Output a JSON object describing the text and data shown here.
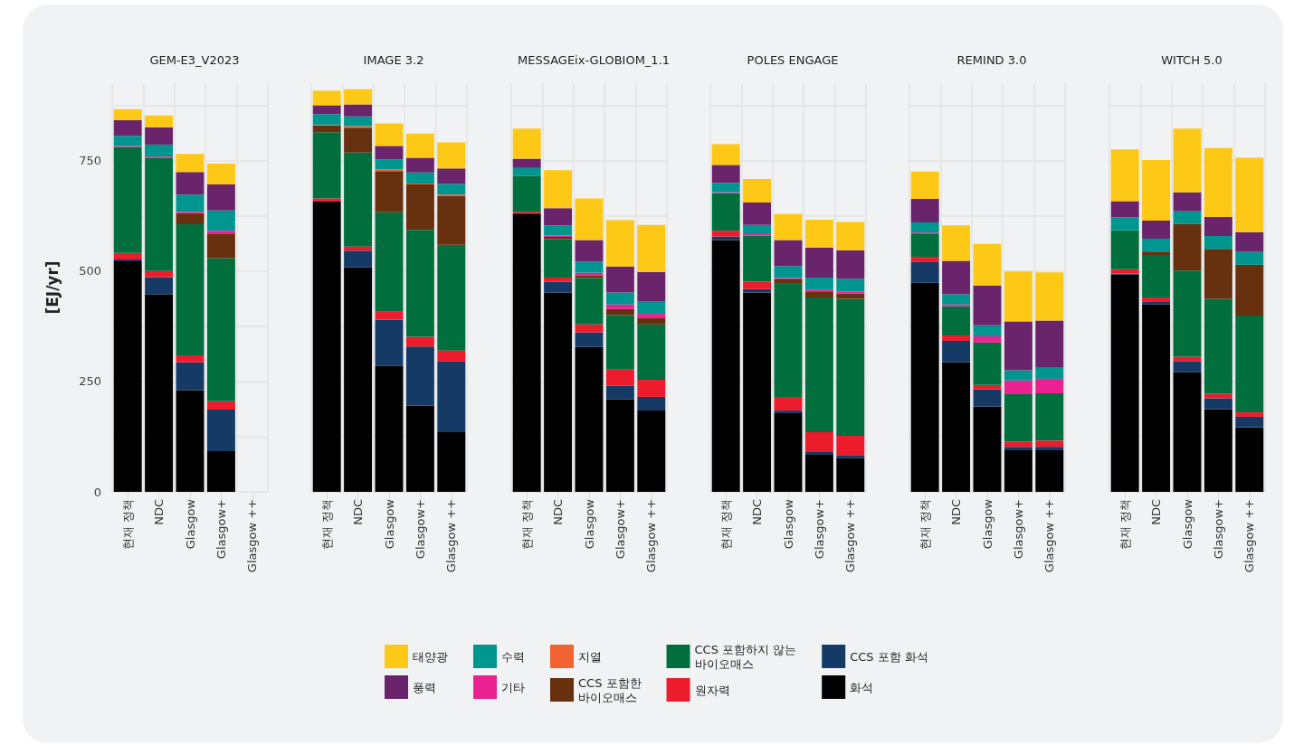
{
  "chart_data": [
    {
      "type": "bar",
      "stacked": true,
      "title": "GEM-E3_V2023",
      "ylabel": "[EJ/yr]",
      "grid": true,
      "legend": "bottom",
      "categories": [
        "현재 정책",
        "NDC",
        "Glasgow",
        "Glasgow+",
        "Glasgow ++"
      ],
      "ylim": [
        0,
        925
      ],
      "yticks": [
        0,
        {
          "value": 125,
          "label": null
        },
        250,
        {
          "value": 375,
          "label": null
        },
        500,
        {
          "value": 625,
          "label": null
        },
        750,
        {
          "value": 875,
          "label": null
        }
      ],
      "series": [
        {
          "name": "화석",
          "color": "#000000",
          "values": [
            522,
            447,
            230,
            92,
            null
          ]
        },
        {
          "name": "CCS 포함 화석",
          "color": "#153a66",
          "values": [
            4,
            39,
            63,
            94,
            null
          ]
        },
        {
          "name": "원자력",
          "color": "#ec1c2d",
          "values": [
            15,
            14,
            16,
            19,
            null
          ]
        },
        {
          "name": "CCS 포함하지 않는 바이오매스",
          "color": "#006f3d",
          "values": [
            239,
            256,
            297,
            324,
            null
          ]
        },
        {
          "name": "CCS 포함한 바이오매스",
          "color": "#67300f",
          "values": [
            0,
            0,
            25,
            56,
            null
          ]
        },
        {
          "name": "지열",
          "color": "#f26334",
          "values": [
            0,
            0,
            0,
            0,
            null
          ]
        },
        {
          "name": "기타",
          "color": "#ec2191",
          "values": [
            3,
            3,
            3,
            6,
            null
          ]
        },
        {
          "name": "수력",
          "color": "#009690",
          "values": [
            23,
            27,
            39,
            46,
            null
          ]
        },
        {
          "name": "풍력",
          "color": "#69246b",
          "values": [
            35,
            39,
            51,
            59,
            null
          ]
        },
        {
          "name": "태양광",
          "color": "#fec817",
          "values": [
            25,
            27,
            41,
            47,
            null
          ]
        }
      ]
    },
    {
      "type": "bar",
      "stacked": true,
      "title": "IMAGE 3.2",
      "grid": true,
      "tick_labels": "x",
      "categories": [
        "현재 정책",
        "NDC",
        "Glasgow",
        "Glasgow+",
        "Glasgow ++"
      ],
      "ylim": [
        0,
        925
      ],
      "yticks": [
        0,
        {
          "value": 125,
          "label": null
        },
        250,
        {
          "value": 375,
          "label": null
        },
        500,
        {
          "value": 625,
          "label": null
        },
        750,
        {
          "value": 875,
          "label": null
        }
      ],
      "series": [
        {
          "color": "#000000",
          "values": [
            657,
            508,
            285,
            195,
            135
          ]
        },
        {
          "color": "#153a66",
          "values": [
            0,
            38,
            105,
            134,
            160
          ]
        },
        {
          "color": "#ec1c2d",
          "values": [
            7,
            9,
            18,
            22,
            25
          ]
        },
        {
          "color": "#006f3d",
          "values": [
            150,
            213,
            225,
            242,
            239
          ]
        },
        {
          "color": "#67300f",
          "values": [
            15,
            56,
            93,
            103,
            111
          ]
        },
        {
          "color": "#f26334",
          "values": [
            2,
            4,
            4,
            2,
            3
          ]
        },
        {
          "color": "#ec2191",
          "values": [
            0,
            0,
            0,
            0,
            0
          ]
        },
        {
          "color": "#009690",
          "values": [
            24,
            22,
            22,
            25,
            24
          ]
        },
        {
          "color": "#69246b",
          "values": [
            20,
            27,
            31,
            33,
            35
          ]
        },
        {
          "color": "#fec817",
          "values": [
            33,
            34,
            51,
            55,
            59
          ]
        }
      ]
    },
    {
      "type": "bar",
      "stacked": true,
      "title": "MESSAGEix-GLOBIOM_1.1",
      "grid": true,
      "tick_labels": "x",
      "categories": [
        "현재 정책",
        "NDC",
        "Glasgow",
        "Glasgow+",
        "Glasgow ++"
      ],
      "ylim": [
        0,
        925
      ],
      "yticks": [
        0,
        {
          "value": 125,
          "label": null
        },
        250,
        {
          "value": 375,
          "label": null
        },
        500,
        {
          "value": 625,
          "label": null
        },
        750,
        {
          "value": 875,
          "label": null
        }
      ],
      "series": [
        {
          "color": "#000000",
          "values": [
            630,
            451,
            328,
            209,
            184
          ]
        },
        {
          "color": "#153a66",
          "values": [
            0,
            25,
            33,
            31,
            31
          ]
        },
        {
          "color": "#ec1c2d",
          "values": [
            4,
            9,
            18,
            37,
            39
          ]
        },
        {
          "color": "#006f3d",
          "values": [
            81,
            87,
            105,
            123,
            125
          ]
        },
        {
          "color": "#67300f",
          "values": [
            0,
            5,
            6,
            14,
            14
          ]
        },
        {
          "color": "#f26334",
          "values": [
            0,
            0,
            0,
            0,
            0
          ]
        },
        {
          "color": "#ec2191",
          "values": [
            0,
            3,
            6,
            10,
            10
          ]
        },
        {
          "color": "#009690",
          "values": [
            18,
            23,
            25,
            27,
            29
          ]
        },
        {
          "color": "#69246b",
          "values": [
            21,
            39,
            49,
            59,
            66
          ]
        },
        {
          "color": "#fec817",
          "values": [
            68,
            86,
            94,
            105,
            106
          ]
        }
      ]
    },
    {
      "type": "bar",
      "stacked": true,
      "title": "POLES ENGAGE",
      "grid": true,
      "tick_labels": "x",
      "categories": [
        "현재 정책",
        "NDC",
        "Glasgow",
        "Glasgow+",
        "Glasgow ++"
      ],
      "ylim": [
        0,
        925
      ],
      "yticks": [
        0,
        {
          "value": 125,
          "label": null
        },
        250,
        {
          "value": 375,
          "label": null
        },
        500,
        {
          "value": 625,
          "label": null
        },
        750,
        {
          "value": 875,
          "label": null
        }
      ],
      "series": [
        {
          "color": "#000000",
          "values": [
            570,
            451,
            178,
            84,
            76
          ]
        },
        {
          "color": "#153a66",
          "values": [
            8,
            8,
            6,
            6,
            6
          ]
        },
        {
          "color": "#ec1c2d",
          "values": [
            13,
            17,
            31,
            45,
            45
          ]
        },
        {
          "color": "#006f3d",
          "values": [
            85,
            104,
            256,
            305,
            310
          ]
        },
        {
          "color": "#67300f",
          "values": [
            0,
            0,
            10,
            14,
            12
          ]
        },
        {
          "color": "#f26334",
          "values": [
            0,
            0,
            0,
            0,
            0
          ]
        },
        {
          "color": "#ec2191",
          "values": [
            2,
            3,
            3,
            4,
            4
          ]
        },
        {
          "color": "#009690",
          "values": [
            21,
            21,
            27,
            27,
            29
          ]
        },
        {
          "color": "#69246b",
          "values": [
            41,
            51,
            59,
            68,
            65
          ]
        },
        {
          "color": "#fec817",
          "values": [
            47,
            53,
            59,
            63,
            64
          ]
        }
      ]
    },
    {
      "type": "bar",
      "stacked": true,
      "title": "REMIND 3.0",
      "grid": true,
      "tick_labels": "x",
      "categories": [
        "현재 정책",
        "NDC",
        "Glasgow",
        "Glasgow+",
        "Glasgow ++"
      ],
      "ylim": [
        0,
        925
      ],
      "yticks": [
        0,
        {
          "value": 125,
          "label": null
        },
        250,
        {
          "value": 375,
          "label": null
        },
        500,
        {
          "value": 625,
          "label": null
        },
        750,
        {
          "value": 875,
          "label": null
        }
      ],
      "series": [
        {
          "color": "#000000",
          "values": [
            473,
            293,
            193,
            94,
            94
          ]
        },
        {
          "color": "#153a66",
          "values": [
            47,
            49,
            39,
            8,
            8
          ]
        },
        {
          "color": "#ec1c2d",
          "values": [
            12,
            12,
            10,
            12,
            14
          ]
        },
        {
          "color": "#006f3d",
          "values": [
            53,
            66,
            96,
            107,
            107
          ]
        },
        {
          "color": "#67300f",
          "values": [
            0,
            0,
            0,
            0,
            0
          ]
        },
        {
          "color": "#f26334",
          "values": [
            0,
            0,
            0,
            0,
            0
          ]
        },
        {
          "color": "#ec2191",
          "values": [
            2,
            4,
            14,
            31,
            33
          ]
        },
        {
          "color": "#009690",
          "values": [
            23,
            23,
            25,
            23,
            25
          ]
        },
        {
          "color": "#69246b",
          "values": [
            53,
            76,
            90,
            111,
            107
          ]
        },
        {
          "color": "#fec817",
          "values": [
            62,
            80,
            94,
            113,
            109
          ]
        }
      ]
    },
    {
      "type": "bar",
      "stacked": true,
      "title": "WITCH 5.0",
      "grid": true,
      "tick_labels": "x",
      "categories": [
        "현재 정책",
        "NDC",
        "Glasgow",
        "Glasgow+",
        "Glasgow ++"
      ],
      "ylim": [
        0,
        925
      ],
      "yticks": [
        0,
        {
          "value": 125,
          "label": null
        },
        250,
        {
          "value": 375,
          "label": null
        },
        500,
        {
          "value": 625,
          "label": null
        },
        750,
        {
          "value": 875,
          "label": null
        }
      ],
      "series": [
        {
          "color": "#000000",
          "values": [
            492,
            424,
            271,
            187,
            146
          ]
        },
        {
          "color": "#153a66",
          "values": [
            2,
            6,
            25,
            25,
            24
          ]
        },
        {
          "color": "#ec1c2d",
          "values": [
            10,
            10,
            10,
            10,
            10
          ]
        },
        {
          "color": "#006f3d",
          "values": [
            88,
            96,
            195,
            215,
            219
          ]
        },
        {
          "color": "#67300f",
          "values": [
            0,
            8,
            105,
            113,
            115
          ]
        },
        {
          "color": "#f26334",
          "values": [
            0,
            0,
            0,
            0,
            0
          ]
        },
        {
          "color": "#ec2191",
          "values": [
            0,
            0,
            0,
            0,
            0
          ]
        },
        {
          "color": "#009690",
          "values": [
            29,
            29,
            29,
            29,
            29
          ]
        },
        {
          "color": "#69246b",
          "values": [
            37,
            41,
            43,
            43,
            45
          ]
        },
        {
          "color": "#fec817",
          "values": [
            117,
            137,
            144,
            156,
            168
          ]
        }
      ]
    }
  ]
}
